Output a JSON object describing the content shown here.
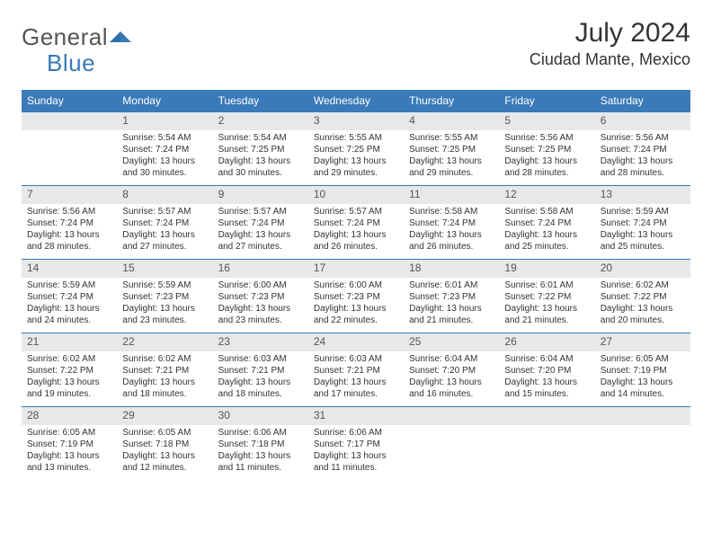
{
  "brand": {
    "name_part1": "General",
    "name_part2": "Blue"
  },
  "title": "July 2024",
  "location": "Ciudad Mante, Mexico",
  "colors": {
    "header_bg": "#3a7ab8",
    "header_text": "#ffffff",
    "daynum_bg": "#e8e8e8",
    "rule": "#3a7ab8",
    "text": "#333333"
  },
  "weekdays": [
    "Sunday",
    "Monday",
    "Tuesday",
    "Wednesday",
    "Thursday",
    "Friday",
    "Saturday"
  ],
  "weeks": [
    [
      {
        "day": "",
        "sunrise": "",
        "sunset": "",
        "daylight1": "",
        "daylight2": ""
      },
      {
        "day": "1",
        "sunrise": "Sunrise: 5:54 AM",
        "sunset": "Sunset: 7:24 PM",
        "daylight1": "Daylight: 13 hours",
        "daylight2": "and 30 minutes."
      },
      {
        "day": "2",
        "sunrise": "Sunrise: 5:54 AM",
        "sunset": "Sunset: 7:25 PM",
        "daylight1": "Daylight: 13 hours",
        "daylight2": "and 30 minutes."
      },
      {
        "day": "3",
        "sunrise": "Sunrise: 5:55 AM",
        "sunset": "Sunset: 7:25 PM",
        "daylight1": "Daylight: 13 hours",
        "daylight2": "and 29 minutes."
      },
      {
        "day": "4",
        "sunrise": "Sunrise: 5:55 AM",
        "sunset": "Sunset: 7:25 PM",
        "daylight1": "Daylight: 13 hours",
        "daylight2": "and 29 minutes."
      },
      {
        "day": "5",
        "sunrise": "Sunrise: 5:56 AM",
        "sunset": "Sunset: 7:25 PM",
        "daylight1": "Daylight: 13 hours",
        "daylight2": "and 28 minutes."
      },
      {
        "day": "6",
        "sunrise": "Sunrise: 5:56 AM",
        "sunset": "Sunset: 7:24 PM",
        "daylight1": "Daylight: 13 hours",
        "daylight2": "and 28 minutes."
      }
    ],
    [
      {
        "day": "7",
        "sunrise": "Sunrise: 5:56 AM",
        "sunset": "Sunset: 7:24 PM",
        "daylight1": "Daylight: 13 hours",
        "daylight2": "and 28 minutes."
      },
      {
        "day": "8",
        "sunrise": "Sunrise: 5:57 AM",
        "sunset": "Sunset: 7:24 PM",
        "daylight1": "Daylight: 13 hours",
        "daylight2": "and 27 minutes."
      },
      {
        "day": "9",
        "sunrise": "Sunrise: 5:57 AM",
        "sunset": "Sunset: 7:24 PM",
        "daylight1": "Daylight: 13 hours",
        "daylight2": "and 27 minutes."
      },
      {
        "day": "10",
        "sunrise": "Sunrise: 5:57 AM",
        "sunset": "Sunset: 7:24 PM",
        "daylight1": "Daylight: 13 hours",
        "daylight2": "and 26 minutes."
      },
      {
        "day": "11",
        "sunrise": "Sunrise: 5:58 AM",
        "sunset": "Sunset: 7:24 PM",
        "daylight1": "Daylight: 13 hours",
        "daylight2": "and 26 minutes."
      },
      {
        "day": "12",
        "sunrise": "Sunrise: 5:58 AM",
        "sunset": "Sunset: 7:24 PM",
        "daylight1": "Daylight: 13 hours",
        "daylight2": "and 25 minutes."
      },
      {
        "day": "13",
        "sunrise": "Sunrise: 5:59 AM",
        "sunset": "Sunset: 7:24 PM",
        "daylight1": "Daylight: 13 hours",
        "daylight2": "and 25 minutes."
      }
    ],
    [
      {
        "day": "14",
        "sunrise": "Sunrise: 5:59 AM",
        "sunset": "Sunset: 7:24 PM",
        "daylight1": "Daylight: 13 hours",
        "daylight2": "and 24 minutes."
      },
      {
        "day": "15",
        "sunrise": "Sunrise: 5:59 AM",
        "sunset": "Sunset: 7:23 PM",
        "daylight1": "Daylight: 13 hours",
        "daylight2": "and 23 minutes."
      },
      {
        "day": "16",
        "sunrise": "Sunrise: 6:00 AM",
        "sunset": "Sunset: 7:23 PM",
        "daylight1": "Daylight: 13 hours",
        "daylight2": "and 23 minutes."
      },
      {
        "day": "17",
        "sunrise": "Sunrise: 6:00 AM",
        "sunset": "Sunset: 7:23 PM",
        "daylight1": "Daylight: 13 hours",
        "daylight2": "and 22 minutes."
      },
      {
        "day": "18",
        "sunrise": "Sunrise: 6:01 AM",
        "sunset": "Sunset: 7:23 PM",
        "daylight1": "Daylight: 13 hours",
        "daylight2": "and 21 minutes."
      },
      {
        "day": "19",
        "sunrise": "Sunrise: 6:01 AM",
        "sunset": "Sunset: 7:22 PM",
        "daylight1": "Daylight: 13 hours",
        "daylight2": "and 21 minutes."
      },
      {
        "day": "20",
        "sunrise": "Sunrise: 6:02 AM",
        "sunset": "Sunset: 7:22 PM",
        "daylight1": "Daylight: 13 hours",
        "daylight2": "and 20 minutes."
      }
    ],
    [
      {
        "day": "21",
        "sunrise": "Sunrise: 6:02 AM",
        "sunset": "Sunset: 7:22 PM",
        "daylight1": "Daylight: 13 hours",
        "daylight2": "and 19 minutes."
      },
      {
        "day": "22",
        "sunrise": "Sunrise: 6:02 AM",
        "sunset": "Sunset: 7:21 PM",
        "daylight1": "Daylight: 13 hours",
        "daylight2": "and 18 minutes."
      },
      {
        "day": "23",
        "sunrise": "Sunrise: 6:03 AM",
        "sunset": "Sunset: 7:21 PM",
        "daylight1": "Daylight: 13 hours",
        "daylight2": "and 18 minutes."
      },
      {
        "day": "24",
        "sunrise": "Sunrise: 6:03 AM",
        "sunset": "Sunset: 7:21 PM",
        "daylight1": "Daylight: 13 hours",
        "daylight2": "and 17 minutes."
      },
      {
        "day": "25",
        "sunrise": "Sunrise: 6:04 AM",
        "sunset": "Sunset: 7:20 PM",
        "daylight1": "Daylight: 13 hours",
        "daylight2": "and 16 minutes."
      },
      {
        "day": "26",
        "sunrise": "Sunrise: 6:04 AM",
        "sunset": "Sunset: 7:20 PM",
        "daylight1": "Daylight: 13 hours",
        "daylight2": "and 15 minutes."
      },
      {
        "day": "27",
        "sunrise": "Sunrise: 6:05 AM",
        "sunset": "Sunset: 7:19 PM",
        "daylight1": "Daylight: 13 hours",
        "daylight2": "and 14 minutes."
      }
    ],
    [
      {
        "day": "28",
        "sunrise": "Sunrise: 6:05 AM",
        "sunset": "Sunset: 7:19 PM",
        "daylight1": "Daylight: 13 hours",
        "daylight2": "and 13 minutes."
      },
      {
        "day": "29",
        "sunrise": "Sunrise: 6:05 AM",
        "sunset": "Sunset: 7:18 PM",
        "daylight1": "Daylight: 13 hours",
        "daylight2": "and 12 minutes."
      },
      {
        "day": "30",
        "sunrise": "Sunrise: 6:06 AM",
        "sunset": "Sunset: 7:18 PM",
        "daylight1": "Daylight: 13 hours",
        "daylight2": "and 11 minutes."
      },
      {
        "day": "31",
        "sunrise": "Sunrise: 6:06 AM",
        "sunset": "Sunset: 7:17 PM",
        "daylight1": "Daylight: 13 hours",
        "daylight2": "and 11 minutes."
      },
      {
        "day": "",
        "sunrise": "",
        "sunset": "",
        "daylight1": "",
        "daylight2": ""
      },
      {
        "day": "",
        "sunrise": "",
        "sunset": "",
        "daylight1": "",
        "daylight2": ""
      },
      {
        "day": "",
        "sunrise": "",
        "sunset": "",
        "daylight1": "",
        "daylight2": ""
      }
    ]
  ]
}
